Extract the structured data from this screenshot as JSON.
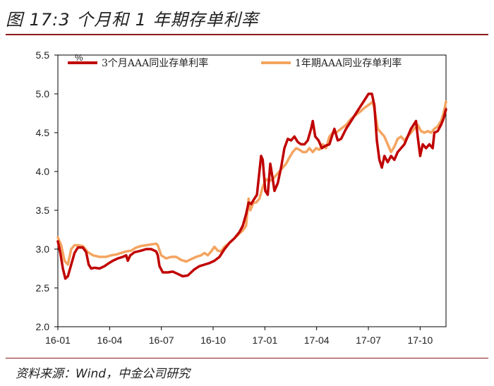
{
  "header": {
    "title": "图 17:3 个月和 1 年期存单利率"
  },
  "footer": {
    "source": "资料来源：Wind，中金公司研究"
  },
  "chart_data": {
    "type": "line",
    "unit": "%",
    "x_ticks": [
      "16-01",
      "16-04",
      "16-07",
      "16-10",
      "17-01",
      "17-04",
      "17-07",
      "17-10"
    ],
    "y_ticks": [
      "2.0",
      "2.5",
      "3.0",
      "3.5",
      "4.0",
      "4.5",
      "5.0",
      "5.5"
    ],
    "ylim": [
      2.0,
      5.5
    ],
    "xlim": [
      0,
      23.3
    ],
    "legend_position": "top",
    "series": [
      {
        "name": "3个月AAA同业存单利率",
        "color": "#c00000",
        "points": [
          [
            0.0,
            3.1
          ],
          [
            0.15,
            2.95
          ],
          [
            0.3,
            2.75
          ],
          [
            0.45,
            2.62
          ],
          [
            0.6,
            2.65
          ],
          [
            0.8,
            2.8
          ],
          [
            1.0,
            2.95
          ],
          [
            1.2,
            3.02
          ],
          [
            1.5,
            3.02
          ],
          [
            1.7,
            2.96
          ],
          [
            1.85,
            2.8
          ],
          [
            2.0,
            2.75
          ],
          [
            2.2,
            2.76
          ],
          [
            2.5,
            2.75
          ],
          [
            2.8,
            2.78
          ],
          [
            3.0,
            2.81
          ],
          [
            3.3,
            2.85
          ],
          [
            3.6,
            2.88
          ],
          [
            3.9,
            2.9
          ],
          [
            4.1,
            2.92
          ],
          [
            4.2,
            2.85
          ],
          [
            4.35,
            2.92
          ],
          [
            4.6,
            2.96
          ],
          [
            5.0,
            2.98
          ],
          [
            5.3,
            3.0
          ],
          [
            5.6,
            3.0
          ],
          [
            5.9,
            2.97
          ],
          [
            6.0,
            2.92
          ],
          [
            6.1,
            2.78
          ],
          [
            6.3,
            2.7
          ],
          [
            6.6,
            2.7
          ],
          [
            6.9,
            2.71
          ],
          [
            7.2,
            2.68
          ],
          [
            7.5,
            2.65
          ],
          [
            7.8,
            2.66
          ],
          [
            8.0,
            2.7
          ],
          [
            8.2,
            2.74
          ],
          [
            8.5,
            2.78
          ],
          [
            8.8,
            2.8
          ],
          [
            9.1,
            2.82
          ],
          [
            9.4,
            2.85
          ],
          [
            9.7,
            2.9
          ],
          [
            10.0,
            3.0
          ],
          [
            10.3,
            3.08
          ],
          [
            10.6,
            3.14
          ],
          [
            10.9,
            3.22
          ],
          [
            11.1,
            3.3
          ],
          [
            11.3,
            3.45
          ],
          [
            11.45,
            3.6
          ],
          [
            11.6,
            3.58
          ],
          [
            11.8,
            3.65
          ],
          [
            11.95,
            3.7
          ],
          [
            12.1,
            4.0
          ],
          [
            12.2,
            4.2
          ],
          [
            12.3,
            4.15
          ],
          [
            12.45,
            3.75
          ],
          [
            12.6,
            3.7
          ],
          [
            12.75,
            4.1
          ],
          [
            12.9,
            3.9
          ],
          [
            13.0,
            3.75
          ],
          [
            13.2,
            3.85
          ],
          [
            13.4,
            4.05
          ],
          [
            13.6,
            4.3
          ],
          [
            13.8,
            4.42
          ],
          [
            14.0,
            4.4
          ],
          [
            14.2,
            4.45
          ],
          [
            14.4,
            4.38
          ],
          [
            14.6,
            4.35
          ],
          [
            14.8,
            4.35
          ],
          [
            15.0,
            4.4
          ],
          [
            15.2,
            4.55
          ],
          [
            15.3,
            4.65
          ],
          [
            15.45,
            4.45
          ],
          [
            15.65,
            4.4
          ],
          [
            15.85,
            4.3
          ],
          [
            16.05,
            4.33
          ],
          [
            16.3,
            4.35
          ],
          [
            16.45,
            4.45
          ],
          [
            16.6,
            4.55
          ],
          [
            16.8,
            4.4
          ],
          [
            17.0,
            4.42
          ],
          [
            17.3,
            4.55
          ],
          [
            17.6,
            4.65
          ],
          [
            17.9,
            4.75
          ],
          [
            18.2,
            4.85
          ],
          [
            18.5,
            4.95
          ],
          [
            18.65,
            5.0
          ],
          [
            18.85,
            5.0
          ],
          [
            19.0,
            4.85
          ],
          [
            19.15,
            4.4
          ],
          [
            19.3,
            4.15
          ],
          [
            19.45,
            4.05
          ],
          [
            19.6,
            4.2
          ],
          [
            19.8,
            4.12
          ],
          [
            20.0,
            4.2
          ],
          [
            20.2,
            4.15
          ],
          [
            20.4,
            4.25
          ],
          [
            20.6,
            4.3
          ],
          [
            20.8,
            4.35
          ],
          [
            21.0,
            4.45
          ],
          [
            21.2,
            4.55
          ],
          [
            21.35,
            4.6
          ],
          [
            21.5,
            4.65
          ],
          [
            21.6,
            4.45
          ],
          [
            21.75,
            4.2
          ],
          [
            21.9,
            4.35
          ],
          [
            22.1,
            4.3
          ],
          [
            22.3,
            4.35
          ],
          [
            22.5,
            4.3
          ],
          [
            22.6,
            4.5
          ],
          [
            22.8,
            4.52
          ],
          [
            23.0,
            4.6
          ],
          [
            23.15,
            4.68
          ],
          [
            23.3,
            4.8
          ]
        ]
      },
      {
        "name": "1年期AAA同业存单利率",
        "color": "#f4a460",
        "points": [
          [
            0.0,
            3.15
          ],
          [
            0.2,
            3.05
          ],
          [
            0.4,
            2.85
          ],
          [
            0.6,
            2.8
          ],
          [
            0.8,
            3.0
          ],
          [
            1.0,
            3.05
          ],
          [
            1.2,
            3.05
          ],
          [
            1.5,
            3.04
          ],
          [
            1.8,
            2.96
          ],
          [
            2.1,
            2.92
          ],
          [
            2.5,
            2.9
          ],
          [
            2.9,
            2.9
          ],
          [
            3.2,
            2.92
          ],
          [
            3.5,
            2.93
          ],
          [
            3.8,
            2.95
          ],
          [
            4.1,
            2.97
          ],
          [
            4.4,
            2.98
          ],
          [
            4.7,
            3.02
          ],
          [
            5.0,
            3.04
          ],
          [
            5.3,
            3.05
          ],
          [
            5.6,
            3.06
          ],
          [
            5.9,
            3.07
          ],
          [
            6.0,
            3.05
          ],
          [
            6.2,
            2.92
          ],
          [
            6.5,
            2.88
          ],
          [
            6.8,
            2.9
          ],
          [
            7.1,
            2.9
          ],
          [
            7.4,
            2.86
          ],
          [
            7.7,
            2.84
          ],
          [
            8.0,
            2.87
          ],
          [
            8.3,
            2.9
          ],
          [
            8.6,
            2.92
          ],
          [
            8.8,
            2.95
          ],
          [
            9.0,
            2.92
          ],
          [
            9.2,
            2.97
          ],
          [
            9.4,
            3.03
          ],
          [
            9.6,
            2.98
          ],
          [
            9.8,
            2.97
          ],
          [
            10.0,
            3.03
          ],
          [
            10.3,
            3.08
          ],
          [
            10.6,
            3.14
          ],
          [
            10.9,
            3.2
          ],
          [
            11.1,
            3.24
          ],
          [
            11.3,
            3.3
          ],
          [
            11.45,
            3.65
          ],
          [
            11.55,
            3.5
          ],
          [
            11.75,
            3.6
          ],
          [
            11.9,
            3.6
          ],
          [
            12.1,
            3.65
          ],
          [
            12.3,
            3.8
          ],
          [
            12.5,
            3.9
          ],
          [
            12.7,
            3.88
          ],
          [
            12.9,
            3.9
          ],
          [
            13.1,
            3.95
          ],
          [
            13.3,
            4.0
          ],
          [
            13.5,
            4.05
          ],
          [
            13.7,
            4.1
          ],
          [
            13.9,
            4.18
          ],
          [
            14.1,
            4.25
          ],
          [
            14.3,
            4.3
          ],
          [
            14.5,
            4.28
          ],
          [
            14.7,
            4.25
          ],
          [
            14.9,
            4.25
          ],
          [
            15.1,
            4.3
          ],
          [
            15.3,
            4.25
          ],
          [
            15.5,
            4.3
          ],
          [
            15.7,
            4.28
          ],
          [
            15.9,
            4.35
          ],
          [
            16.1,
            4.3
          ],
          [
            16.3,
            4.45
          ],
          [
            16.5,
            4.5
          ],
          [
            16.7,
            4.5
          ],
          [
            17.0,
            4.55
          ],
          [
            17.3,
            4.6
          ],
          [
            17.6,
            4.68
          ],
          [
            17.9,
            4.73
          ],
          [
            18.2,
            4.78
          ],
          [
            18.4,
            4.82
          ],
          [
            18.6,
            4.85
          ],
          [
            18.8,
            4.88
          ],
          [
            18.9,
            4.9
          ],
          [
            19.05,
            4.75
          ],
          [
            19.2,
            4.55
          ],
          [
            19.4,
            4.5
          ],
          [
            19.6,
            4.45
          ],
          [
            19.8,
            4.35
          ],
          [
            20.0,
            4.25
          ],
          [
            20.2,
            4.32
          ],
          [
            20.4,
            4.42
          ],
          [
            20.6,
            4.45
          ],
          [
            20.8,
            4.4
          ],
          [
            21.0,
            4.45
          ],
          [
            21.2,
            4.5
          ],
          [
            21.4,
            4.55
          ],
          [
            21.6,
            4.6
          ],
          [
            21.8,
            4.52
          ],
          [
            22.0,
            4.5
          ],
          [
            22.2,
            4.52
          ],
          [
            22.4,
            4.5
          ],
          [
            22.6,
            4.55
          ],
          [
            22.8,
            4.58
          ],
          [
            23.0,
            4.65
          ],
          [
            23.15,
            4.75
          ],
          [
            23.3,
            4.9
          ]
        ]
      }
    ]
  }
}
